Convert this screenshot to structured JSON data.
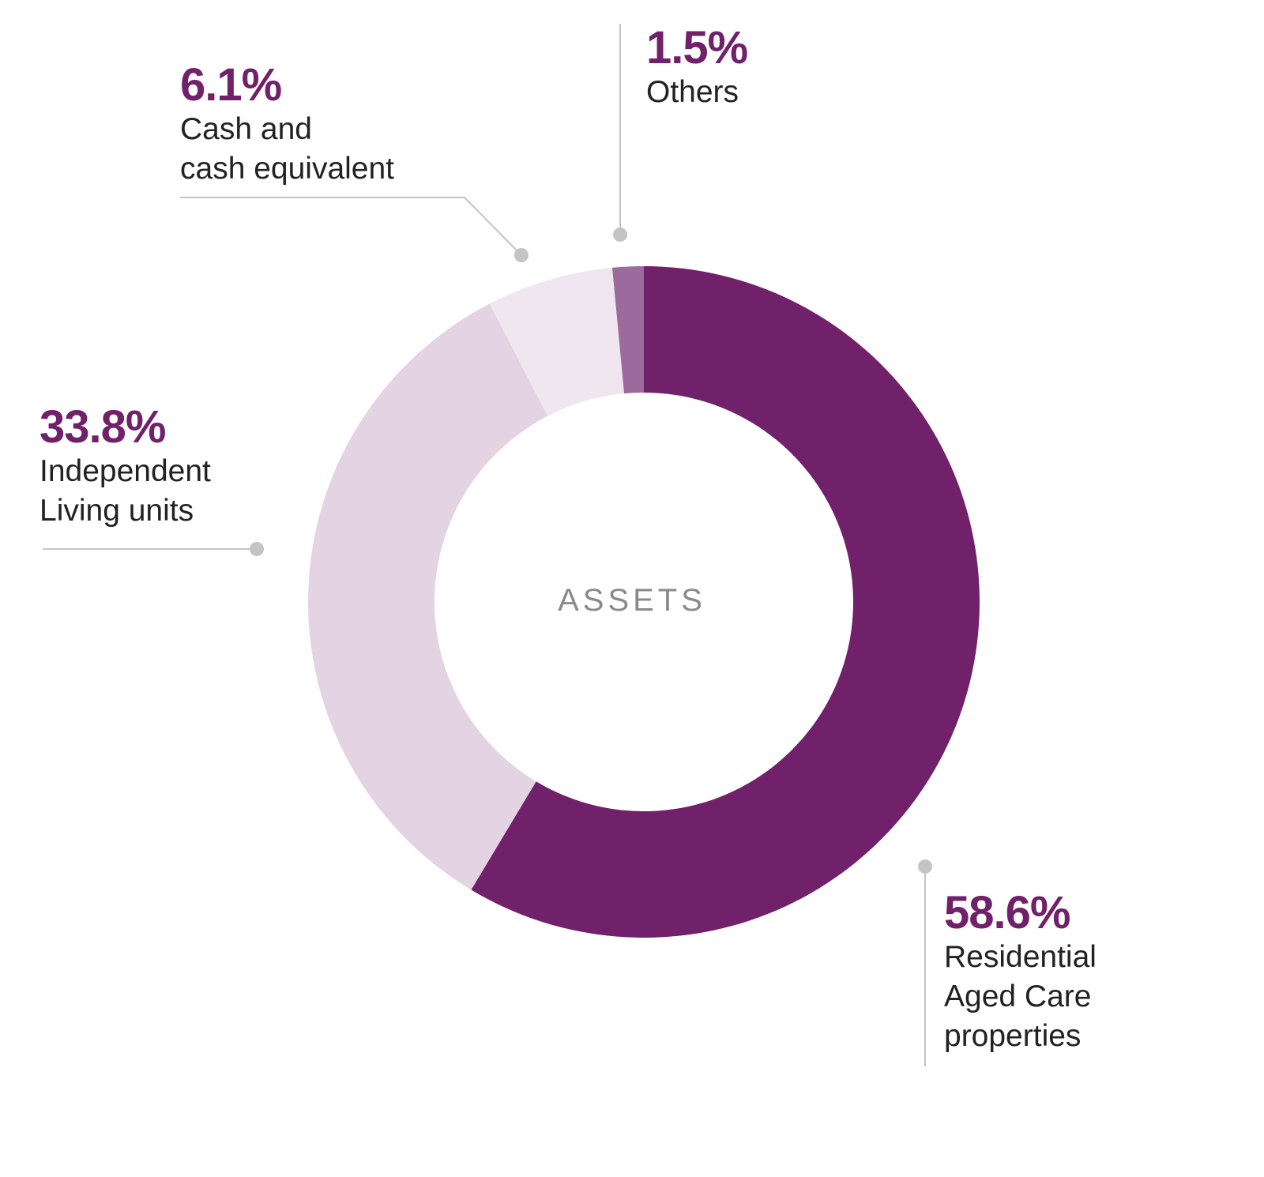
{
  "chart_data": {
    "type": "pie",
    "variant": "donut",
    "center_label": "ASSETS",
    "slices": [
      {
        "name": "Residential Aged Care properties",
        "lines": [
          "Residential",
          "Aged Care",
          "properties"
        ],
        "value": 58.6,
        "label": "58.6%",
        "color": "#71206a"
      },
      {
        "name": "Independent Living units",
        "lines": [
          "Independent",
          "Living units"
        ],
        "value": 33.8,
        "label": "33.8%",
        "color": "#e3d3e3"
      },
      {
        "name": "Cash and cash equivalent",
        "lines": [
          "Cash and",
          "cash equivalent"
        ],
        "value": 6.1,
        "label": "6.1%",
        "color": "#f0e6f0"
      },
      {
        "name": "Others",
        "lines": [
          "Others"
        ],
        "value": 1.5,
        "label": "1.5%",
        "color": "#9c6a9c"
      }
    ],
    "start": "top",
    "direction": "clockwise",
    "leader_color": "#c4c4c4"
  }
}
